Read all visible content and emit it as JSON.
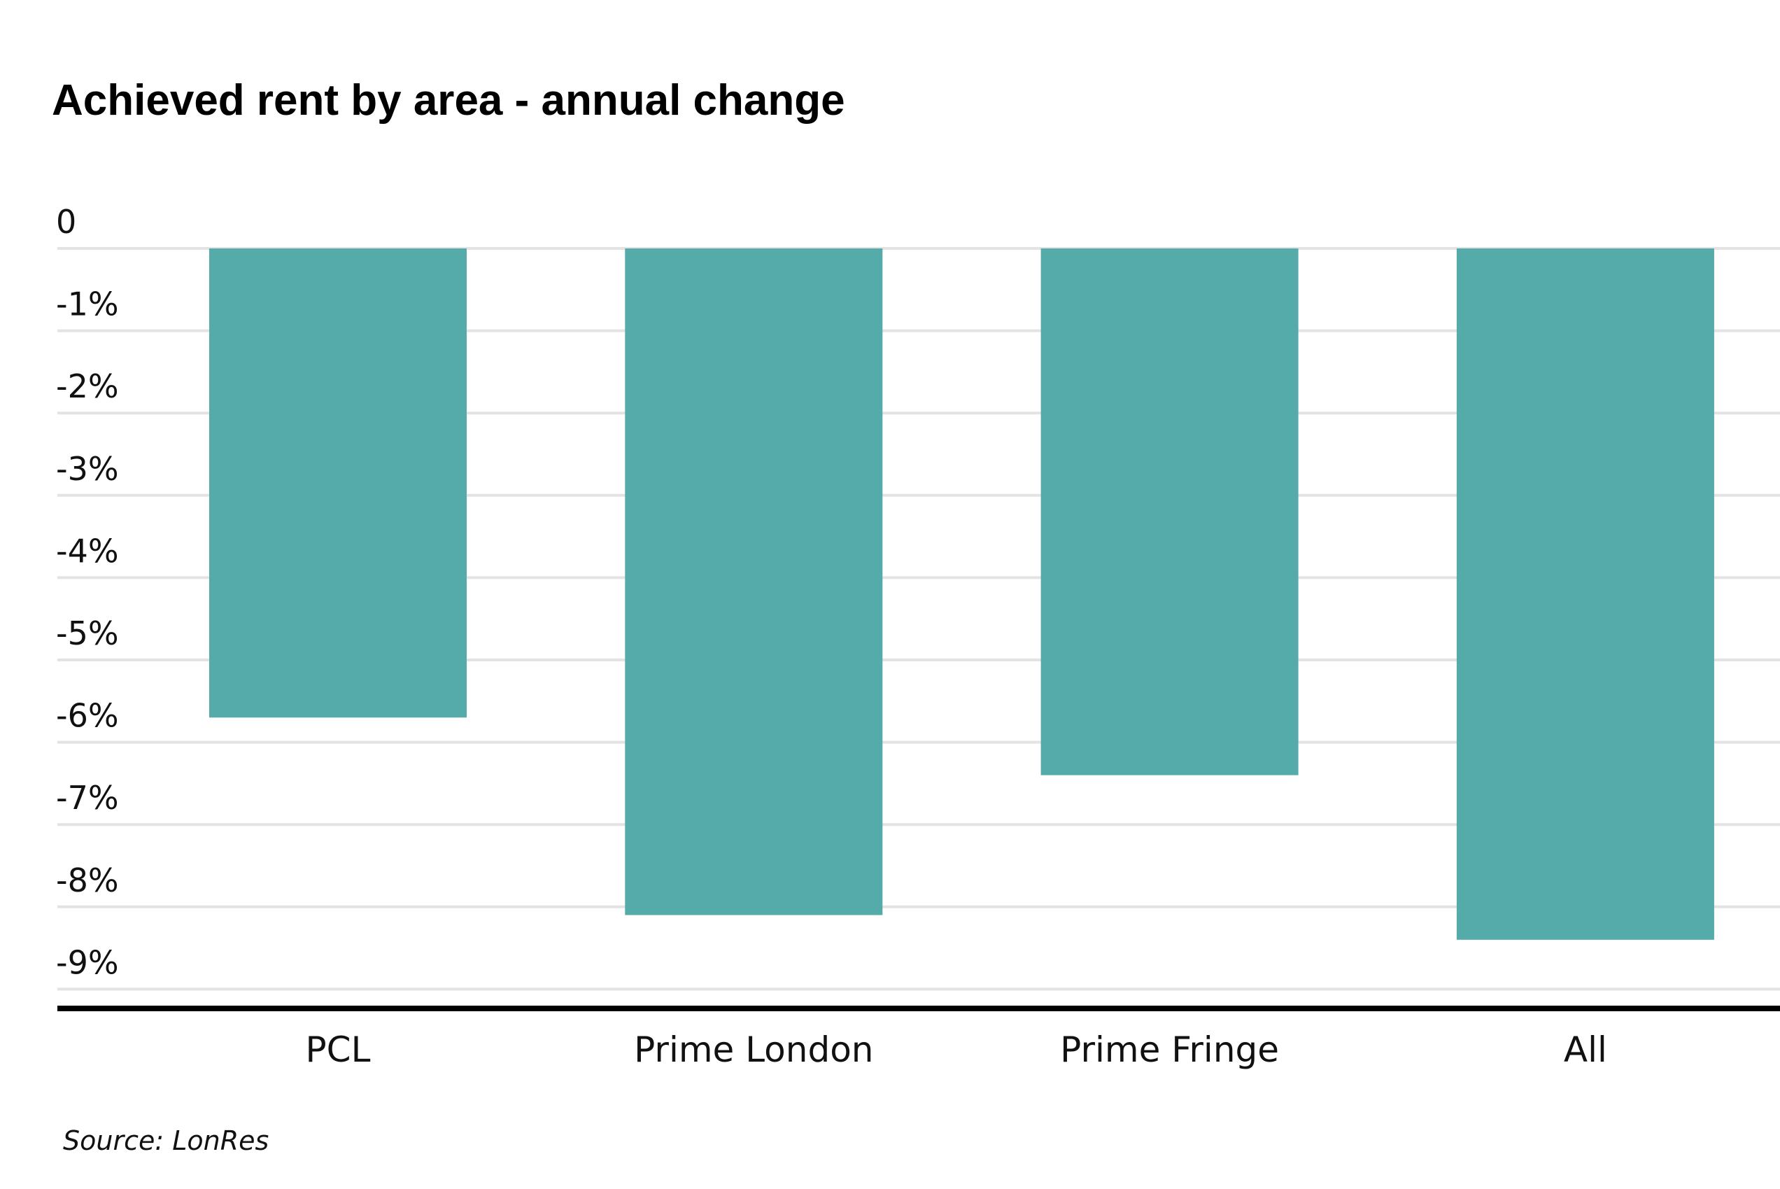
{
  "chart_data": {
    "type": "bar",
    "title": "Achieved rent by area - annual change",
    "xlabel": "",
    "ylabel": "",
    "categories": [
      "PCL",
      "Prime London",
      "Prime Fringe",
      "All"
    ],
    "values": [
      -5.7,
      -8.1,
      -6.4,
      -8.4
    ],
    "unit": "%",
    "ylim": [
      -9,
      0
    ],
    "yticks": [
      0,
      -1,
      -2,
      -3,
      -4,
      -5,
      -6,
      -7,
      -8,
      -9
    ],
    "ytick_labels": [
      "0",
      "-1%",
      "-2%",
      "-3%",
      "-4%",
      "-5%",
      "-6%",
      "-7%",
      "-8%",
      "-9%"
    ],
    "grid": true,
    "legend": "none",
    "bar_color": "#54abaa",
    "source": "Source: LonRes"
  }
}
